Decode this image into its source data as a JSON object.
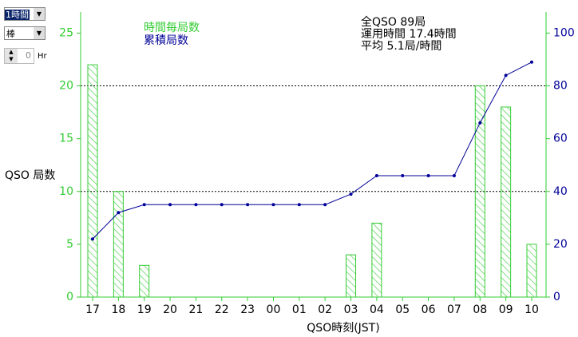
{
  "controls": {
    "interval": "1時間",
    "style": "棒",
    "spinner_value": "0",
    "spinner_unit": "Hr"
  },
  "chart_data": {
    "type": "bar",
    "ylabel": "QSO 局数",
    "xlabel": "QSO時刻(JST)",
    "annotations": [
      "全QSO 89局",
      "運用時間 17.4時間",
      "平均 5.1局/時間"
    ],
    "categories": [
      "17",
      "18",
      "19",
      "20",
      "21",
      "22",
      "23",
      "00",
      "01",
      "02",
      "03",
      "04",
      "05",
      "06",
      "07",
      "08",
      "09",
      "10"
    ],
    "series": [
      {
        "name": "時間毎局数",
        "color": "#33cc33",
        "type": "bar",
        "values": [
          22,
          10,
          3,
          0,
          0,
          0,
          0,
          0,
          0,
          0,
          4,
          7,
          0,
          0,
          0,
          20,
          18,
          5
        ]
      },
      {
        "name": "累積局数",
        "color": "#000099",
        "type": "line",
        "axis": "y2",
        "values": [
          22,
          32,
          35,
          35,
          35,
          35,
          35,
          35,
          35,
          35,
          39,
          46,
          46,
          46,
          46,
          66,
          84,
          89
        ]
      }
    ],
    "ylim": [
      0,
      27
    ],
    "yticks": [
      0,
      5,
      10,
      15,
      20,
      25
    ],
    "y2lim": [
      0,
      108
    ],
    "y2ticks": [
      0,
      20,
      40,
      60,
      80,
      100
    ],
    "grid_values": [
      10,
      20
    ]
  }
}
